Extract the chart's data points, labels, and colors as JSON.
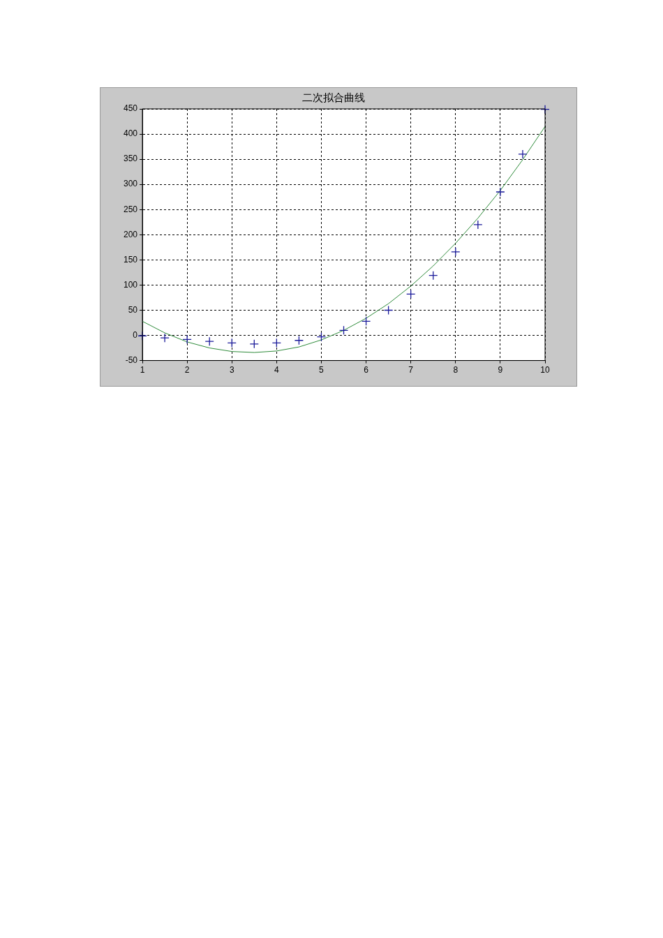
{
  "chart_data": {
    "type": "scatter",
    "title": "二次拟合曲线",
    "x": [
      1,
      1.5,
      2,
      2.5,
      3,
      3.5,
      4,
      4.5,
      5,
      5.5,
      6,
      6.5,
      7,
      7.5,
      8,
      8.5,
      9,
      9.5,
      10
    ],
    "series": [
      {
        "color": "#1a1a9a",
        "marker": "cross",
        "values": [
          -1,
          -5,
          -8,
          -12,
          -15,
          -17,
          -15,
          -10,
          -3,
          10,
          28,
          50,
          82,
          119,
          166,
          220,
          285,
          360,
          449
        ]
      },
      {
        "type": "line",
        "color": "#2e8b3a",
        "marker": "none",
        "line_style": "solid",
        "values": [
          28,
          5,
          -13,
          -25,
          -32,
          -34,
          -31,
          -23,
          -9,
          10,
          34,
          63,
          98,
          138,
          183,
          233,
          288,
          349,
          415
        ]
      }
    ],
    "xlim": [
      1,
      10
    ],
    "xticks": [
      1,
      2,
      3,
      4,
      5,
      6,
      7,
      8,
      9,
      10
    ],
    "ylim": [
      -50,
      450
    ],
    "yticks": [
      -50,
      0,
      50,
      100,
      150,
      200,
      250,
      300,
      350,
      400,
      450
    ],
    "grid": true,
    "legend": false
  }
}
